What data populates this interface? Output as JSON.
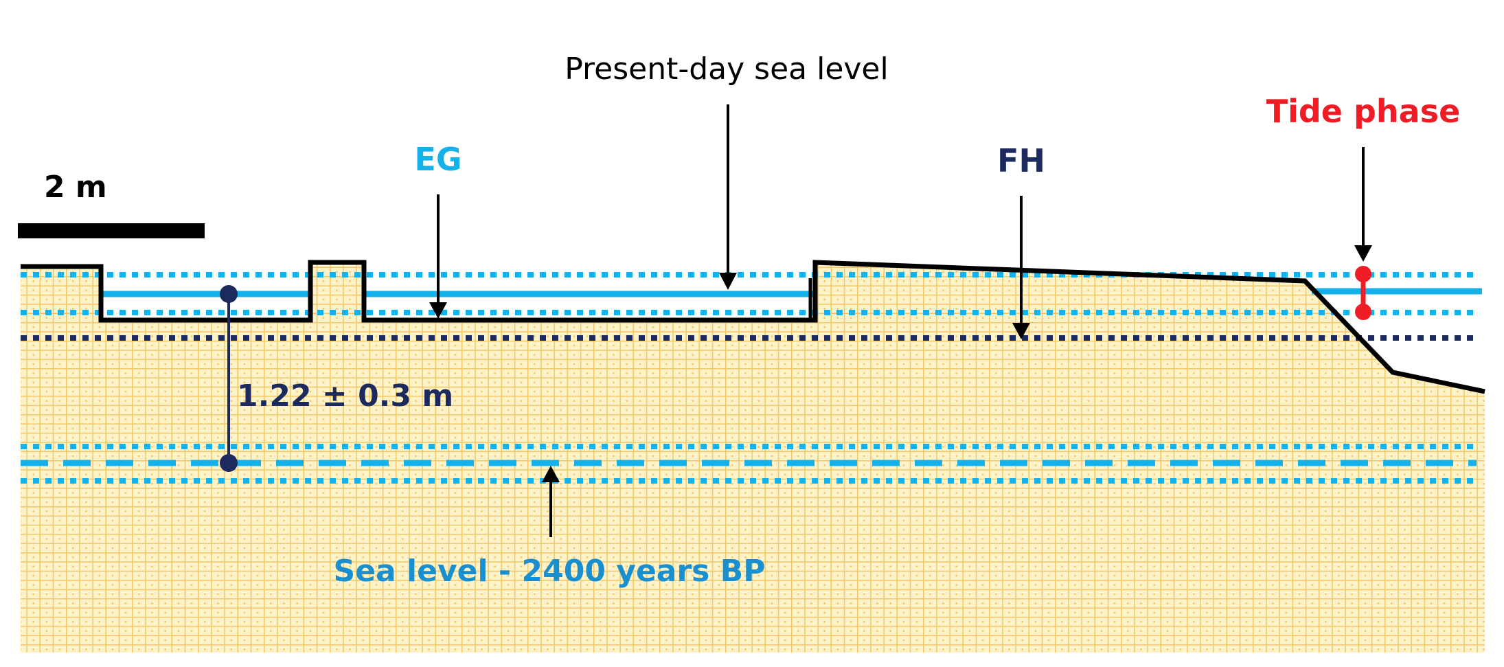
{
  "labels": {
    "present_day_sea_level": "Present-day sea level",
    "tide_phase": "Tide phase",
    "eg": "EG",
    "fh": "FH",
    "scale_bar": "2 m",
    "offset": "1.22 ± 0.3 m",
    "ancient_sea_level": "Sea level - 2400 years BP"
  },
  "colors": {
    "present_sea": "#14b1ea",
    "ancient_sea": "#1a8fcf",
    "fh_line": "#1c2a5e",
    "tide": "#ee1c24",
    "ground_fill": "#fdf2c8",
    "ground_grid": "#f2c766",
    "outline": "#000000"
  }
}
